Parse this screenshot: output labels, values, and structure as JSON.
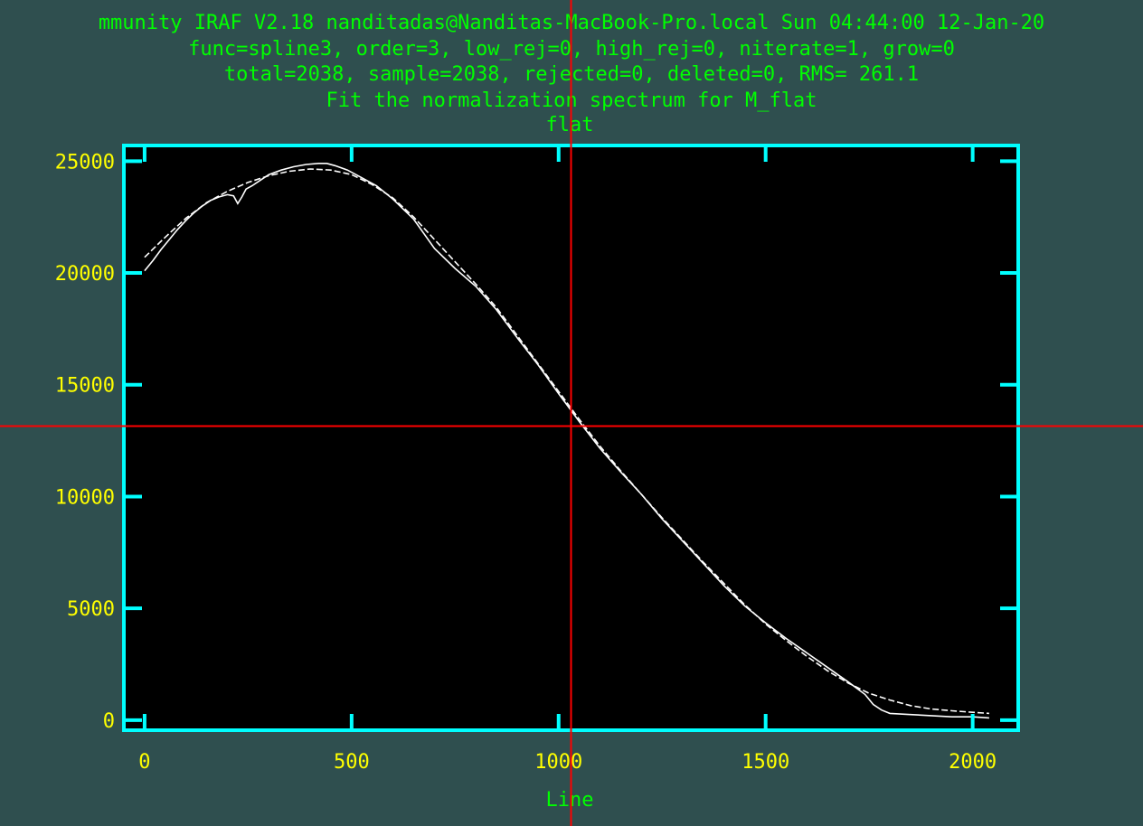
{
  "header": {
    "line1": "mmunity IRAF V2.18 nanditadas@Nanditas-MacBook-Pro.local Sun 04:44:00 12-Jan-20",
    "line2": "func=spline3, order=3, low_rej=0, high_rej=0, niterate=1, grow=0",
    "line3": "total=2038, sample=2038, rejected=0, deleted=0, RMS=  261.1",
    "line4": "Fit the normalization spectrum for M_flat"
  },
  "colors": {
    "background": "#2f4f4f",
    "plot_background": "#000000",
    "frame": "#00ffff",
    "header_text": "#00ff00",
    "tick_text": "#ffff00",
    "data": "#ffffff",
    "cursor": "#ff0000"
  },
  "cursor": {
    "x": 1030,
    "y": 13150
  },
  "chart_data": {
    "type": "line",
    "title": "flat",
    "xlabel": "Line",
    "ylabel": "",
    "xlim": [
      -50,
      2110
    ],
    "ylim": [
      -450,
      25700
    ],
    "x_ticks": [
      0,
      500,
      1000,
      1500,
      2000
    ],
    "x_tick_labels": [
      "0",
      "500",
      "1000",
      "1500",
      "2000"
    ],
    "y_ticks": [
      0,
      5000,
      10000,
      15000,
      20000,
      25000
    ],
    "y_tick_labels": [
      "0",
      "5000",
      "10000",
      "15000",
      "20000",
      "25000"
    ],
    "grid": false,
    "series": [
      {
        "style": "solid",
        "x": [
          0,
          20,
          40,
          60,
          80,
          100,
          120,
          140,
          160,
          180,
          200,
          215,
          225,
          235,
          245,
          260,
          280,
          300,
          330,
          360,
          390,
          420,
          440,
          460,
          490,
          520,
          560,
          600,
          650,
          700,
          750,
          800,
          850,
          900,
          950,
          1000,
          1050,
          1100,
          1150,
          1200,
          1250,
          1300,
          1350,
          1400,
          1450,
          1500,
          1550,
          1600,
          1650,
          1700,
          1740,
          1760,
          1780,
          1800,
          1850,
          1900,
          1950,
          2000,
          2040
        ],
        "y": [
          20100,
          20550,
          21050,
          21500,
          21950,
          22350,
          22700,
          23000,
          23250,
          23400,
          23500,
          23450,
          23100,
          23400,
          23750,
          23900,
          24150,
          24400,
          24600,
          24750,
          24850,
          24900,
          24900,
          24800,
          24600,
          24300,
          23900,
          23300,
          22400,
          21100,
          20200,
          19400,
          18350,
          17100,
          15900,
          14600,
          13350,
          12150,
          11100,
          10100,
          9000,
          8000,
          7000,
          6000,
          5100,
          4350,
          3650,
          3000,
          2350,
          1700,
          1150,
          700,
          450,
          300,
          250,
          200,
          150,
          150,
          100
        ]
      },
      {
        "style": "dashed",
        "x": [
          0,
          50,
          100,
          150,
          200,
          250,
          300,
          350,
          400,
          450,
          500,
          550,
          600,
          650,
          700,
          750,
          800,
          850,
          900,
          950,
          1000,
          1050,
          1100,
          1150,
          1200,
          1250,
          1300,
          1350,
          1400,
          1450,
          1500,
          1550,
          1600,
          1650,
          1700,
          1750,
          1800,
          1850,
          1900,
          1950,
          2000,
          2040
        ],
        "y": [
          20700,
          21600,
          22450,
          23150,
          23650,
          24050,
          24350,
          24550,
          24650,
          24600,
          24400,
          23950,
          23350,
          22500,
          21500,
          20500,
          19500,
          18450,
          17200,
          15950,
          14700,
          13450,
          12250,
          11150,
          10100,
          9050,
          8050,
          7050,
          6100,
          5150,
          4300,
          3550,
          2850,
          2200,
          1650,
          1200,
          900,
          650,
          500,
          420,
          350,
          300
        ]
      }
    ]
  }
}
